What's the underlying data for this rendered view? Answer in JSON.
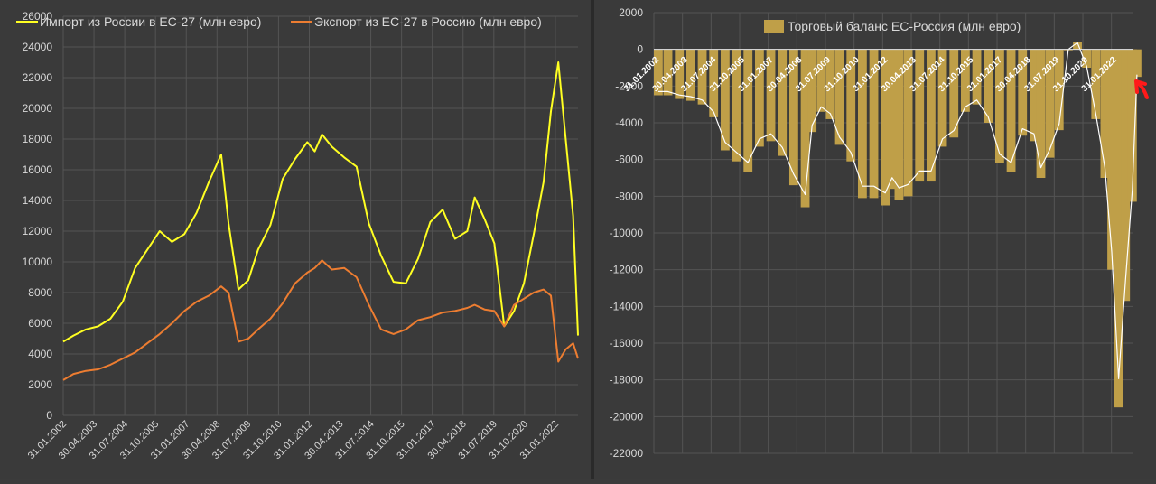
{
  "colors": {
    "background": "#3a3a3a",
    "import_line": "#ffff22",
    "export_line": "#ed7d31",
    "balance_bar": "#bf9f48",
    "balance_line": "#ffffff",
    "grid": "#545454",
    "text": "#d9d9d9",
    "annotation_arrow": "#ff1a1a"
  },
  "chart_data": [
    {
      "type": "line",
      "title": "",
      "xlabel": "",
      "ylabel": "",
      "ylim": [
        0,
        26000
      ],
      "yticks": [
        0,
        2000,
        4000,
        6000,
        8000,
        10000,
        12000,
        14000,
        16000,
        18000,
        20000,
        22000,
        24000,
        26000
      ],
      "x_tick_labels": [
        "31.01.2002",
        "30.04.2003",
        "31.07.2004",
        "31.10.2005",
        "31.01.2007",
        "30.04.2008",
        "31.07.2009",
        "31.10.2010",
        "31.01.2012",
        "30.04.2013",
        "31.07.2014",
        "31.10.2015",
        "31.01.2017",
        "30.04.2018",
        "31.07.2019",
        "31.10.2020",
        "31.01.2022"
      ],
      "x_tick_positions": [
        2002.08,
        2003.33,
        2004.58,
        2005.83,
        2007.08,
        2008.33,
        2009.58,
        2010.83,
        2012.08,
        2013.33,
        2014.58,
        2015.83,
        2017.08,
        2018.33,
        2019.58,
        2020.83,
        2022.08
      ],
      "xlim": [
        2002.08,
        2023.0
      ],
      "grid": true,
      "legend": "top",
      "series": [
        {
          "name": "Импорт из России в ЕС-27 (млн евро)",
          "color": "#ffff22",
          "x": [
            2002.08,
            2002.5,
            2003.0,
            2003.5,
            2004.0,
            2004.5,
            2005.0,
            2005.5,
            2006.0,
            2006.5,
            2007.0,
            2007.5,
            2008.0,
            2008.5,
            2008.8,
            2009.2,
            2009.6,
            2010.0,
            2010.5,
            2011.0,
            2011.5,
            2012.0,
            2012.3,
            2012.6,
            2013.0,
            2013.5,
            2014.0,
            2014.5,
            2015.0,
            2015.5,
            2016.0,
            2016.5,
            2017.0,
            2017.5,
            2018.0,
            2018.5,
            2018.8,
            2019.2,
            2019.6,
            2020.0,
            2020.4,
            2020.8,
            2021.2,
            2021.6,
            2021.9,
            2022.2,
            2022.5,
            2022.8,
            2023.0
          ],
          "values": [
            4800,
            5200,
            5600,
            5800,
            6300,
            7400,
            9600,
            10800,
            12000,
            11300,
            11800,
            13200,
            15200,
            17000,
            12500,
            8200,
            8800,
            10800,
            12400,
            15400,
            16700,
            17800,
            17200,
            18300,
            17500,
            16800,
            16200,
            12500,
            10400,
            8700,
            8600,
            10200,
            12600,
            13400,
            11500,
            12000,
            14200,
            12800,
            11200,
            5800,
            6800,
            8600,
            11800,
            15200,
            19800,
            23000,
            18000,
            13000,
            5200
          ]
        },
        {
          "name": "Экспорт из ЕС-27 в Россию (млн евро)",
          "color": "#ed7d31",
          "x": [
            2002.08,
            2002.5,
            2003.0,
            2003.5,
            2004.0,
            2004.5,
            2005.0,
            2005.5,
            2006.0,
            2006.5,
            2007.0,
            2007.5,
            2008.0,
            2008.5,
            2008.8,
            2009.2,
            2009.6,
            2010.0,
            2010.5,
            2011.0,
            2011.5,
            2012.0,
            2012.3,
            2012.6,
            2013.0,
            2013.5,
            2014.0,
            2014.5,
            2015.0,
            2015.5,
            2016.0,
            2016.5,
            2017.0,
            2017.5,
            2018.0,
            2018.5,
            2018.8,
            2019.2,
            2019.6,
            2020.0,
            2020.4,
            2020.8,
            2021.2,
            2021.6,
            2021.9,
            2022.2,
            2022.5,
            2022.8,
            2023.0
          ],
          "values": [
            2300,
            2700,
            2900,
            3000,
            3300,
            3700,
            4100,
            4700,
            5300,
            6000,
            6800,
            7400,
            7800,
            8400,
            8000,
            4800,
            5000,
            5600,
            6300,
            7300,
            8600,
            9300,
            9600,
            10100,
            9500,
            9600,
            9000,
            7200,
            5600,
            5300,
            5600,
            6200,
            6400,
            6700,
            6800,
            7000,
            7200,
            6900,
            6800,
            5800,
            7200,
            7600,
            8000,
            8200,
            7800,
            3500,
            4300,
            4700,
            3700
          ]
        }
      ]
    },
    {
      "type": "bar",
      "title": "",
      "xlabel": "",
      "ylabel": "",
      "ylim": [
        -22000,
        2000
      ],
      "yticks": [
        2000,
        0,
        -2000,
        -4000,
        -6000,
        -8000,
        -10000,
        -12000,
        -14000,
        -16000,
        -18000,
        -20000,
        -22000
      ],
      "x_tick_labels": [
        "31.01.2002",
        "30.04.2003",
        "31.07.2004",
        "31.10.2005",
        "31.01.2007",
        "30.04.2008",
        "31.07.2009",
        "31.10.2010",
        "31.01.2012",
        "30.04.2013",
        "31.07.2014",
        "31.10.2015",
        "31.01.2017",
        "30.04.2018",
        "31.07.2019",
        "31.10.2020",
        "31.01.2022"
      ],
      "x_tick_positions": [
        2002.08,
        2003.33,
        2004.58,
        2005.83,
        2007.08,
        2008.33,
        2009.58,
        2010.83,
        2012.08,
        2013.33,
        2014.58,
        2015.83,
        2017.08,
        2018.33,
        2019.58,
        2020.83,
        2022.08
      ],
      "xlim": [
        2002.08,
        2023.0
      ],
      "grid": true,
      "legend": "top",
      "series": [
        {
          "name": "Торговый баланс ЕС-Россия (млн евро)",
          "color": "#bf9f48",
          "x": [
            2002.08,
            2002.5,
            2003.0,
            2003.5,
            2004.0,
            2004.5,
            2005.0,
            2005.5,
            2006.0,
            2006.5,
            2007.0,
            2007.5,
            2008.0,
            2008.5,
            2008.8,
            2009.2,
            2009.6,
            2010.0,
            2010.5,
            2011.0,
            2011.5,
            2012.0,
            2012.3,
            2012.6,
            2013.0,
            2013.5,
            2014.0,
            2014.5,
            2015.0,
            2015.5,
            2016.0,
            2016.5,
            2017.0,
            2017.5,
            2018.0,
            2018.5,
            2018.8,
            2019.2,
            2019.6,
            2020.0,
            2020.4,
            2020.8,
            2021.2,
            2021.6,
            2021.9,
            2022.2,
            2022.5,
            2022.8,
            2023.0
          ],
          "values": [
            -2500,
            -2500,
            -2700,
            -2800,
            -3000,
            -3700,
            -5500,
            -6100,
            -6700,
            -5300,
            -5000,
            -5800,
            -7400,
            -8600,
            -4500,
            -3400,
            -3800,
            -5200,
            -6100,
            -8100,
            -8100,
            -8500,
            -7600,
            -8200,
            -8000,
            -7200,
            -7200,
            -5300,
            -4800,
            -3400,
            -3000,
            -4000,
            -6200,
            -6700,
            -4700,
            -5000,
            -7000,
            -5900,
            -4400,
            0,
            400,
            -1000,
            -3800,
            -7000,
            -12000,
            -19500,
            -13700,
            -8300,
            -1500
          ]
        }
      ]
    }
  ]
}
